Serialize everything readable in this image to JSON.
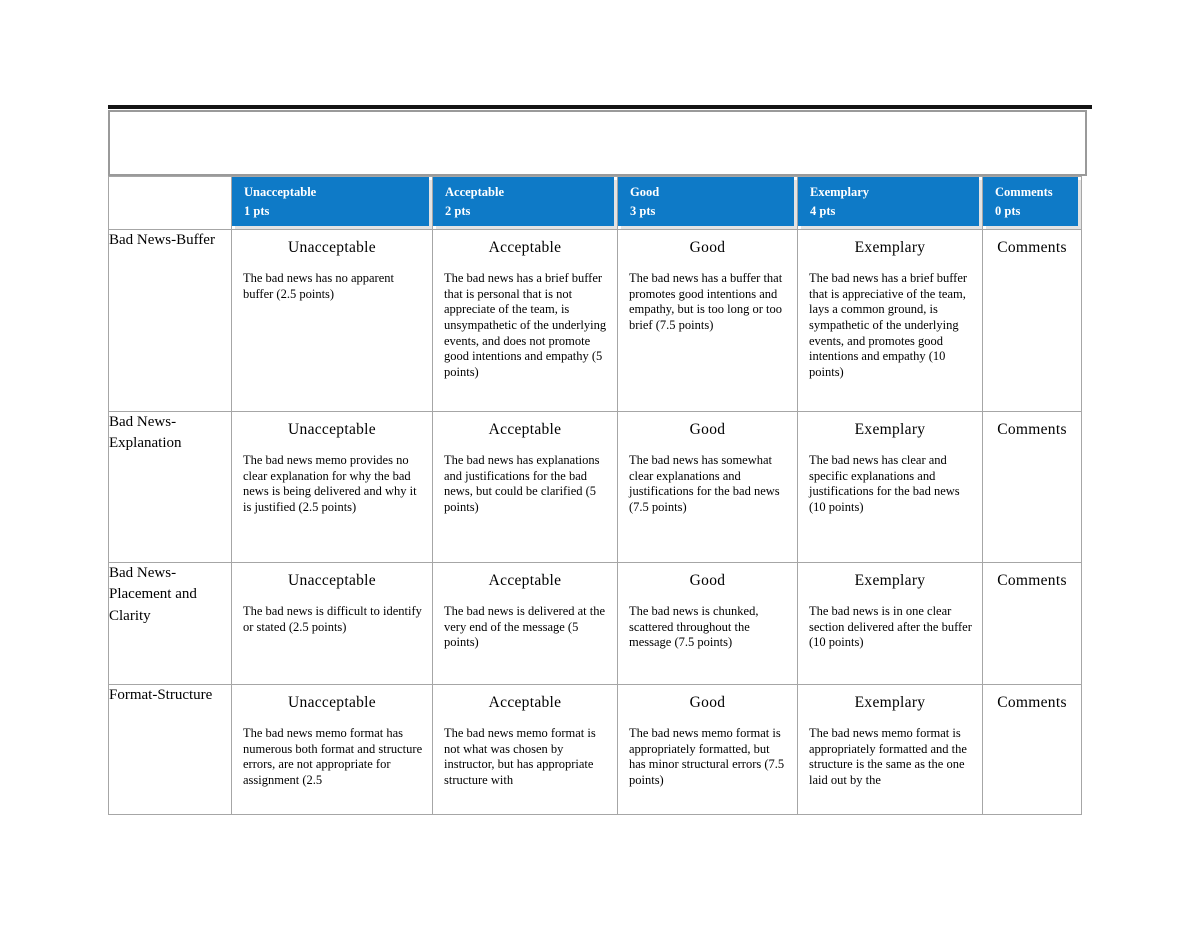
{
  "colors": {
    "header_blue": "#0e7ac7",
    "header_text": "#ffffff",
    "cell_border_gray": "#a6a6a6",
    "title_box_border_gray": "#9a9a9a",
    "top_rule_black": "#141414",
    "chip_shadow_gray": "#e3e3e3",
    "body_text": "#000000"
  },
  "title_box_text": "",
  "table": {
    "columns": [
      {
        "label": "",
        "pts": ""
      },
      {
        "label": "Unacceptable",
        "pts": "1 pts"
      },
      {
        "label": "Acceptable",
        "pts": "2 pts"
      },
      {
        "label": "Good",
        "pts": "3 pts"
      },
      {
        "label": "Exemplary",
        "pts": "4 pts"
      },
      {
        "label": "Comments",
        "pts": "0 pts"
      }
    ],
    "rows": [
      {
        "criterion": "Bad News-Buffer",
        "cells": [
          {
            "heading": "Unacceptable",
            "description": "The bad news has no apparent buffer (2.5 points)"
          },
          {
            "heading": "Acceptable",
            "description": "The bad news has a brief buffer that is personal that is not appreciate of the team, is unsympathetic of the underlying events, and does not promote good intentions and empathy (5 points)"
          },
          {
            "heading": "Good",
            "description": "The bad news has a buffer that promotes good intentions and empathy, but is too long or too brief (7.5 points)"
          },
          {
            "heading": "Exemplary",
            "description": "The bad news has a brief buffer that is appreciative of the team, lays a common ground, is sympathetic of the underlying events, and promotes good intentions and empathy (10 points)"
          },
          {
            "heading": "Comments",
            "description": ""
          }
        ]
      },
      {
        "criterion": "Bad News-Explanation",
        "cells": [
          {
            "heading": "Unacceptable",
            "description": "The bad news memo provides no clear explanation for why the bad news is being delivered and why it is justified (2.5 points)"
          },
          {
            "heading": "Acceptable",
            "description": "The bad news has explanations and justifications for the bad news, but could be clarified (5 points)"
          },
          {
            "heading": "Good",
            "description": "The bad news has somewhat clear explanations and justifications for the bad news (7.5 points)"
          },
          {
            "heading": "Exemplary",
            "description": "The bad news has clear and specific explanations and justifications for the bad news (10 points)"
          },
          {
            "heading": "Comments",
            "description": ""
          }
        ]
      },
      {
        "criterion": "Bad News-Placement and Clarity",
        "cells": [
          {
            "heading": "Unacceptable",
            "description": "The bad news is difficult to identify or stated (2.5 points)"
          },
          {
            "heading": "Acceptable",
            "description": "The bad news is delivered at the very end of the message (5 points)"
          },
          {
            "heading": "Good",
            "description": "The bad news is chunked, scattered throughout the message (7.5 points)"
          },
          {
            "heading": "Exemplary",
            "description": "The bad news is in one clear section delivered after the buffer (10 points)"
          },
          {
            "heading": "Comments",
            "description": ""
          }
        ]
      },
      {
        "criterion": "Format-Structure",
        "cells": [
          {
            "heading": "Unacceptable",
            "description": "The bad news memo format has numerous both format and structure errors, are not appropriate for assignment (2.5"
          },
          {
            "heading": "Acceptable",
            "description": "The bad news memo format is not what was chosen by instructor, but has appropriate structure with"
          },
          {
            "heading": "Good",
            "description": "The bad news memo format is appropriately formatted, but has minor structural errors (7.5 points)"
          },
          {
            "heading": "Exemplary",
            "description": "The bad news memo format is appropriately formatted and the structure is the same as the one laid out by the"
          },
          {
            "heading": "Comments",
            "description": ""
          }
        ]
      }
    ]
  }
}
